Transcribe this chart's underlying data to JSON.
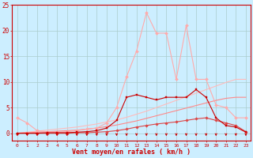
{
  "x": [
    0,
    1,
    2,
    3,
    4,
    5,
    6,
    7,
    8,
    9,
    10,
    11,
    12,
    13,
    14,
    15,
    16,
    17,
    18,
    19,
    20,
    21,
    22,
    23
  ],
  "line1_rafales": [
    3.0,
    2.0,
    0.5,
    0.3,
    0.2,
    0.3,
    0.5,
    0.8,
    1.0,
    2.0,
    5.0,
    11.0,
    16.0,
    23.5,
    19.5,
    19.5,
    10.5,
    21.0,
    10.5,
    10.5,
    5.5,
    5.0,
    3.0,
    3.0
  ],
  "line2_moy": [
    0.0,
    0.0,
    0.0,
    0.1,
    0.1,
    0.1,
    0.2,
    0.3,
    0.5,
    1.0,
    2.5,
    7.0,
    7.5,
    7.0,
    6.5,
    7.0,
    7.0,
    7.0,
    8.5,
    7.0,
    3.0,
    1.5,
    1.2,
    0.2
  ],
  "line3_trend1": [
    0.0,
    0.2,
    0.4,
    0.6,
    0.8,
    1.0,
    1.2,
    1.5,
    1.8,
    2.2,
    2.6,
    3.1,
    3.7,
    4.3,
    5.0,
    5.7,
    6.4,
    7.1,
    7.8,
    8.5,
    9.2,
    9.9,
    10.5,
    10.5
  ],
  "line4_trend2": [
    0.0,
    0.1,
    0.2,
    0.3,
    0.4,
    0.5,
    0.6,
    0.8,
    1.0,
    1.3,
    1.6,
    2.0,
    2.4,
    2.9,
    3.4,
    3.9,
    4.4,
    4.9,
    5.4,
    5.9,
    6.4,
    6.8,
    7.0,
    7.0
  ],
  "line5_low": [
    0.0,
    0.0,
    0.0,
    0.0,
    0.0,
    0.0,
    0.1,
    0.1,
    0.2,
    0.3,
    0.5,
    0.8,
    1.2,
    1.5,
    1.8,
    2.0,
    2.2,
    2.5,
    2.8,
    3.0,
    2.5,
    2.0,
    1.5,
    0.3
  ],
  "color_rafales": "#ffaaaa",
  "color_moy": "#cc0000",
  "color_trend1": "#ffbbbb",
  "color_trend2": "#ff8888",
  "color_low": "#dd4444",
  "bg_color": "#cceeff",
  "grid_color": "#aacccc",
  "text_color": "#cc0000",
  "xlabel": "Vent moyen/en rafales ( km/h )",
  "ylim": [
    -1.5,
    25
  ],
  "xlim": [
    -0.5,
    23.5
  ],
  "yticks": [
    0,
    5,
    10,
    15,
    20,
    25
  ],
  "xticks": [
    0,
    1,
    2,
    3,
    4,
    5,
    6,
    7,
    8,
    9,
    10,
    11,
    12,
    13,
    14,
    15,
    16,
    17,
    18,
    19,
    20,
    21,
    22,
    23
  ]
}
